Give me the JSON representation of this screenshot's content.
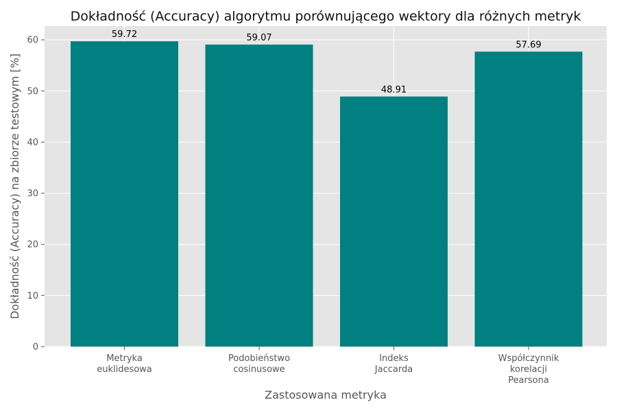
{
  "chart_data": {
    "type": "bar",
    "title": "Dokładność (Accuracy) algorytmu porównującego wektory dla różnych metryk",
    "xlabel": "Zastosowana metryka",
    "ylabel": "Dokładność (Accuracy) na zbiorze testowym [%]",
    "categories": [
      [
        "Metryka",
        "euklidesowa"
      ],
      [
        "Podobieństwo",
        "cosinusowe"
      ],
      [
        "Indeks",
        "Jaccarda"
      ],
      [
        "Współczynnik",
        "korelacji",
        "Pearsona"
      ]
    ],
    "values": [
      59.72,
      59.07,
      48.91,
      57.69
    ],
    "value_labels": [
      "59.72",
      "59.07",
      "48.91",
      "57.69"
    ],
    "yticks": [
      0,
      10,
      20,
      30,
      40,
      50,
      60
    ],
    "ylim": [
      0,
      62.7
    ],
    "grid": true,
    "colors": {
      "bar": "#008080",
      "plot_bg": "#e5e5e5",
      "grid": "#ffffff"
    }
  }
}
